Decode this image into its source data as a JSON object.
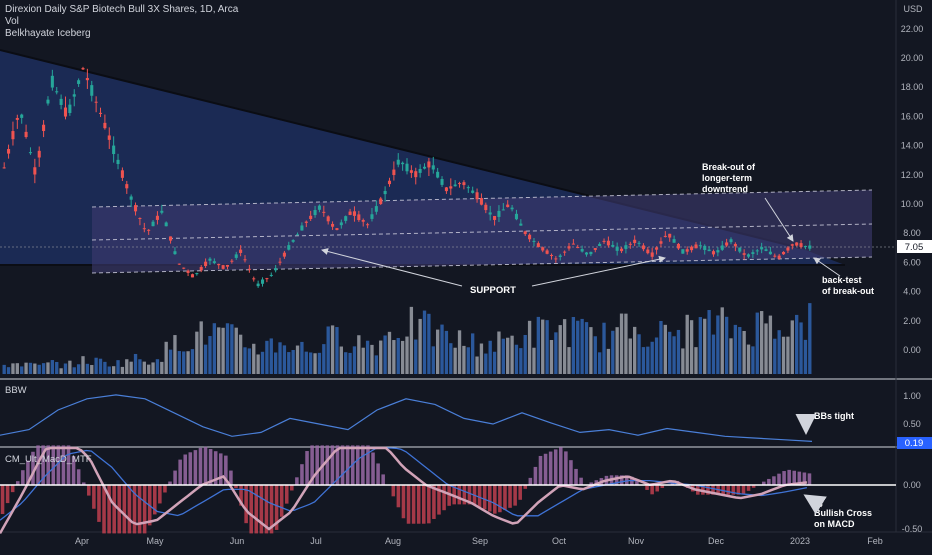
{
  "header": {
    "symbol_line": "Direxion Daily S&P Biotech Bull 3X Shares, 1D, Arca",
    "indicator_vol": "Vol",
    "indicator_iceberg": "Belkhayate Iceberg"
  },
  "price_pane": {
    "currency": "USD",
    "last_price_tag": "7.05",
    "annotations": {
      "breakout": [
        "Break-out of",
        "longer-term",
        "downtrend"
      ],
      "support": "SUPPORT",
      "backtest": [
        "back-test",
        "of break-out"
      ]
    }
  },
  "bbw_pane": {
    "name": "BBW",
    "value_tag": "0.19",
    "annotation": "BBs tight"
  },
  "macd_pane": {
    "name": "CM_Ult_MacD_MTF",
    "annotation": [
      "Bullish Cross",
      "on MACD"
    ]
  },
  "colors": {
    "background": "#131722",
    "bull": "#26a69a",
    "bear": "#ef5350",
    "triangle_fill": "#1f3266",
    "channel_fill": "#3d3a70",
    "bbw_line": "#4a7fd8",
    "macd_line": "#d1a3b8",
    "signal_line": "#3f73d6",
    "volume_blue": "#2f5fa8",
    "volume_grey": "#9598a1"
  },
  "chart_data": [
    {
      "type": "candlestick",
      "title": "Direxion Daily S&P Biotech Bull 3X Shares, 1D, Arca",
      "ylabel": "USD",
      "x_ticks": [
        "Apr",
        "May",
        "Jun",
        "Jul",
        "Aug",
        "Sep",
        "Oct",
        "Nov",
        "Dec",
        "2023",
        "Feb"
      ],
      "y_ticks": [
        22.0,
        20.0,
        18.0,
        16.0,
        14.0,
        12.0,
        10.0,
        8.0,
        6.0,
        4.0,
        2.0,
        0.0
      ],
      "last_price": 7.05,
      "price_path": [
        {
          "x": "Mar",
          "y": 12.5
        },
        {
          "x": "Mar",
          "y": 16.5
        },
        {
          "x": "Mar",
          "y": 12.0
        },
        {
          "x": "Mar",
          "y": 18.5
        },
        {
          "x": "Mar",
          "y": 16.0
        },
        {
          "x": "Apr",
          "y": 19.3
        },
        {
          "x": "Apr",
          "y": 16.5
        },
        {
          "x": "Apr",
          "y": 13.5
        },
        {
          "x": "Apr",
          "y": 10.5
        },
        {
          "x": "Apr",
          "y": 8.0
        },
        {
          "x": "May",
          "y": 9.5
        },
        {
          "x": "May",
          "y": 6.0
        },
        {
          "x": "May",
          "y": 5.0
        },
        {
          "x": "May",
          "y": 6.2
        },
        {
          "x": "May",
          "y": 5.6
        },
        {
          "x": "Jun",
          "y": 6.8
        },
        {
          "x": "Jun",
          "y": 4.4
        },
        {
          "x": "Jun",
          "y": 5.2
        },
        {
          "x": "Jun",
          "y": 7.0
        },
        {
          "x": "Jul",
          "y": 8.6
        },
        {
          "x": "Jul",
          "y": 9.8
        },
        {
          "x": "Jul",
          "y": 8.2
        },
        {
          "x": "Jul",
          "y": 9.5
        },
        {
          "x": "Jul",
          "y": 8.6
        },
        {
          "x": "Aug",
          "y": 10.5
        },
        {
          "x": "Aug",
          "y": 13.0
        },
        {
          "x": "Aug",
          "y": 12.0
        },
        {
          "x": "Aug",
          "y": 12.8
        },
        {
          "x": "Aug",
          "y": 11.0
        },
        {
          "x": "Aug",
          "y": 11.5
        },
        {
          "x": "Sep",
          "y": 10.5
        },
        {
          "x": "Sep",
          "y": 9.0
        },
        {
          "x": "Sep",
          "y": 10.0
        },
        {
          "x": "Sep",
          "y": 8.0
        },
        {
          "x": "Sep",
          "y": 7.0
        },
        {
          "x": "Oct",
          "y": 6.2
        },
        {
          "x": "Oct",
          "y": 7.3
        },
        {
          "x": "Oct",
          "y": 6.5
        },
        {
          "x": "Oct",
          "y": 7.5
        },
        {
          "x": "Nov",
          "y": 6.8
        },
        {
          "x": "Nov",
          "y": 7.5
        },
        {
          "x": "Nov",
          "y": 6.5
        },
        {
          "x": "Nov",
          "y": 8.0
        },
        {
          "x": "Nov",
          "y": 6.7
        },
        {
          "x": "Dec",
          "y": 7.2
        },
        {
          "x": "Dec",
          "y": 6.6
        },
        {
          "x": "Dec",
          "y": 7.5
        },
        {
          "x": "Dec",
          "y": 6.4
        },
        {
          "x": "Dec",
          "y": 7.0
        },
        {
          "x": "Dec",
          "y": 6.3
        },
        {
          "x": "2023",
          "y": 7.3
        },
        {
          "x": "2023",
          "y": 7.05
        }
      ],
      "volume_relative": [
        0.12,
        0.15,
        0.1,
        0.14,
        0.12,
        0.18,
        0.16,
        0.14,
        0.2,
        0.18,
        0.3,
        0.45,
        0.5,
        0.55,
        0.48,
        0.4,
        0.35,
        0.42,
        0.38,
        0.3,
        0.45,
        0.5,
        0.42,
        0.38,
        0.55,
        0.65,
        0.6,
        0.5,
        0.45,
        0.4,
        0.38,
        0.42,
        0.5,
        0.55,
        0.58,
        0.6,
        0.52,
        0.48,
        0.55,
        0.62,
        0.58,
        0.5,
        0.55,
        0.6,
        0.65,
        0.62,
        0.58,
        0.66,
        0.75,
        0.6,
        0.7
      ]
    },
    {
      "type": "line",
      "name": "BBW",
      "y_ticks": [
        1.0,
        0.5
      ],
      "last_value": 0.19,
      "points": [
        {
          "x": "Mar",
          "y": 0.3
        },
        {
          "x": "Apr",
          "y": 0.4
        },
        {
          "x": "Apr",
          "y": 0.75
        },
        {
          "x": "May",
          "y": 0.95
        },
        {
          "x": "May",
          "y": 1.02
        },
        {
          "x": "May",
          "y": 0.95
        },
        {
          "x": "May",
          "y": 0.7
        },
        {
          "x": "Jun",
          "y": 0.45
        },
        {
          "x": "Jun",
          "y": 0.28
        },
        {
          "x": "Jul",
          "y": 0.35
        },
        {
          "x": "Jul",
          "y": 0.6
        },
        {
          "x": "Jul",
          "y": 0.5
        },
        {
          "x": "Aug",
          "y": 0.4
        },
        {
          "x": "Aug",
          "y": 0.75
        },
        {
          "x": "Aug",
          "y": 0.95
        },
        {
          "x": "Aug",
          "y": 0.85
        },
        {
          "x": "Sep",
          "y": 0.6
        },
        {
          "x": "Sep",
          "y": 0.5
        },
        {
          "x": "Sep",
          "y": 0.7
        },
        {
          "x": "Oct",
          "y": 0.52
        },
        {
          "x": "Oct",
          "y": 0.35
        },
        {
          "x": "Nov",
          "y": 0.4
        },
        {
          "x": "Nov",
          "y": 0.3
        },
        {
          "x": "Nov",
          "y": 0.42
        },
        {
          "x": "Dec",
          "y": 0.35
        },
        {
          "x": "Dec",
          "y": 0.28
        },
        {
          "x": "Dec",
          "y": 0.25
        },
        {
          "x": "2023",
          "y": 0.22
        },
        {
          "x": "2023",
          "y": 0.19
        }
      ]
    },
    {
      "type": "bar+line",
      "name": "CM_Ult_MacD_MTF",
      "y_ticks": [
        0.0,
        -0.5
      ],
      "series": [
        {
          "name": "MACD",
          "values": [
            -0.55,
            -0.1,
            0.4,
            0.55,
            0.3,
            -0.2,
            -0.45,
            -0.4,
            -0.2,
            0.0,
            0.1,
            -0.3,
            -0.5,
            -0.3,
            0.1,
            0.4,
            0.6,
            0.5,
            0.2,
            0.0,
            -0.1,
            -0.2,
            -0.35,
            -0.45,
            -0.2,
            0.0,
            -0.05,
            0.05,
            0.1,
            0.0,
            0.05,
            -0.05,
            -0.1,
            -0.15,
            -0.1,
            0.0,
            0.03
          ]
        },
        {
          "name": "Signal",
          "values": [
            -0.4,
            -0.2,
            0.1,
            0.35,
            0.4,
            0.2,
            -0.1,
            -0.3,
            -0.35,
            -0.2,
            -0.05,
            -0.05,
            -0.2,
            -0.3,
            -0.2,
            0.05,
            0.3,
            0.45,
            0.4,
            0.2,
            0.0,
            -0.1,
            -0.2,
            -0.35,
            -0.35,
            -0.2,
            -0.05,
            0.0,
            0.05,
            0.05,
            0.02,
            0.0,
            -0.05,
            -0.1,
            -0.12,
            -0.08,
            -0.03
          ]
        }
      ]
    }
  ]
}
